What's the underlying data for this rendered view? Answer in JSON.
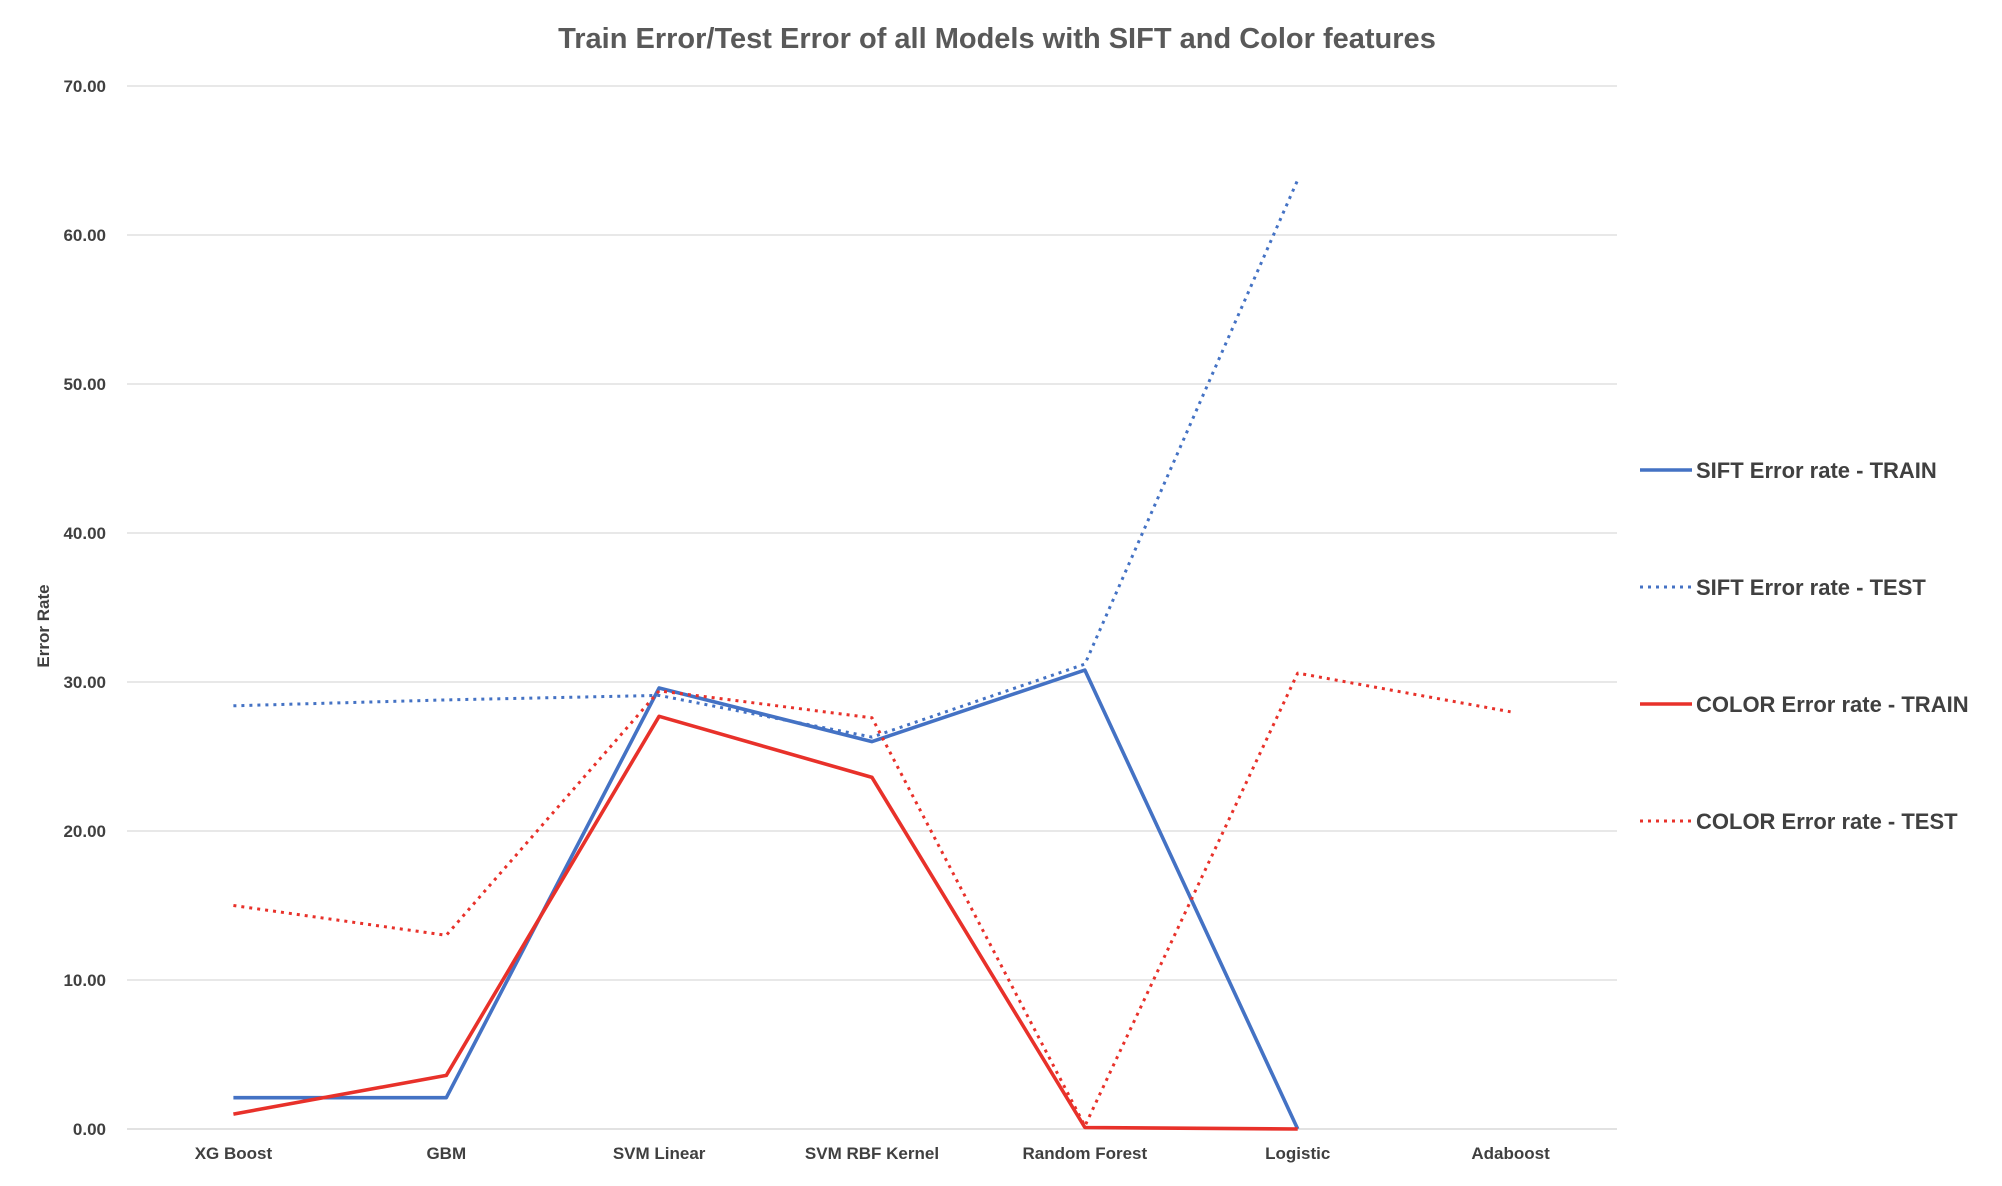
{
  "chart_data": {
    "type": "line",
    "title": "Train Error/Test Error of all Models with SIFT and Color features",
    "xlabel": "",
    "ylabel": "Error Rate",
    "ylim": [
      0,
      70
    ],
    "y_ticks": [
      "0.00",
      "10.00",
      "20.00",
      "30.00",
      "40.00",
      "50.00",
      "60.00",
      "70.00"
    ],
    "categories": [
      "XG Boost",
      "GBM",
      "SVM Linear",
      "SVM RBF Kernel",
      "Random Forest",
      "Logistic",
      "Adaboost"
    ],
    "grid": "horizontal",
    "legend_position": "right",
    "series": [
      {
        "name": "SIFT Error rate - TRAIN",
        "color": "#4472C4",
        "style": "solid",
        "values": [
          2.1,
          2.1,
          29.6,
          26.0,
          30.8,
          0.0,
          null
        ]
      },
      {
        "name": "SIFT Error rate - TEST",
        "color": "#4472C4",
        "style": "dotted",
        "values": [
          28.4,
          28.8,
          29.1,
          26.3,
          31.2,
          63.7,
          null
        ]
      },
      {
        "name": "COLOR Error rate - TRAIN",
        "color": "#E8312A",
        "style": "solid",
        "values": [
          1.0,
          3.6,
          27.7,
          23.6,
          0.1,
          0.0,
          null
        ]
      },
      {
        "name": "COLOR Error rate - TEST",
        "color": "#E8312A",
        "style": "dotted",
        "values": [
          15.0,
          13.0,
          29.4,
          27.6,
          0.2,
          30.6,
          28.0
        ]
      }
    ]
  }
}
